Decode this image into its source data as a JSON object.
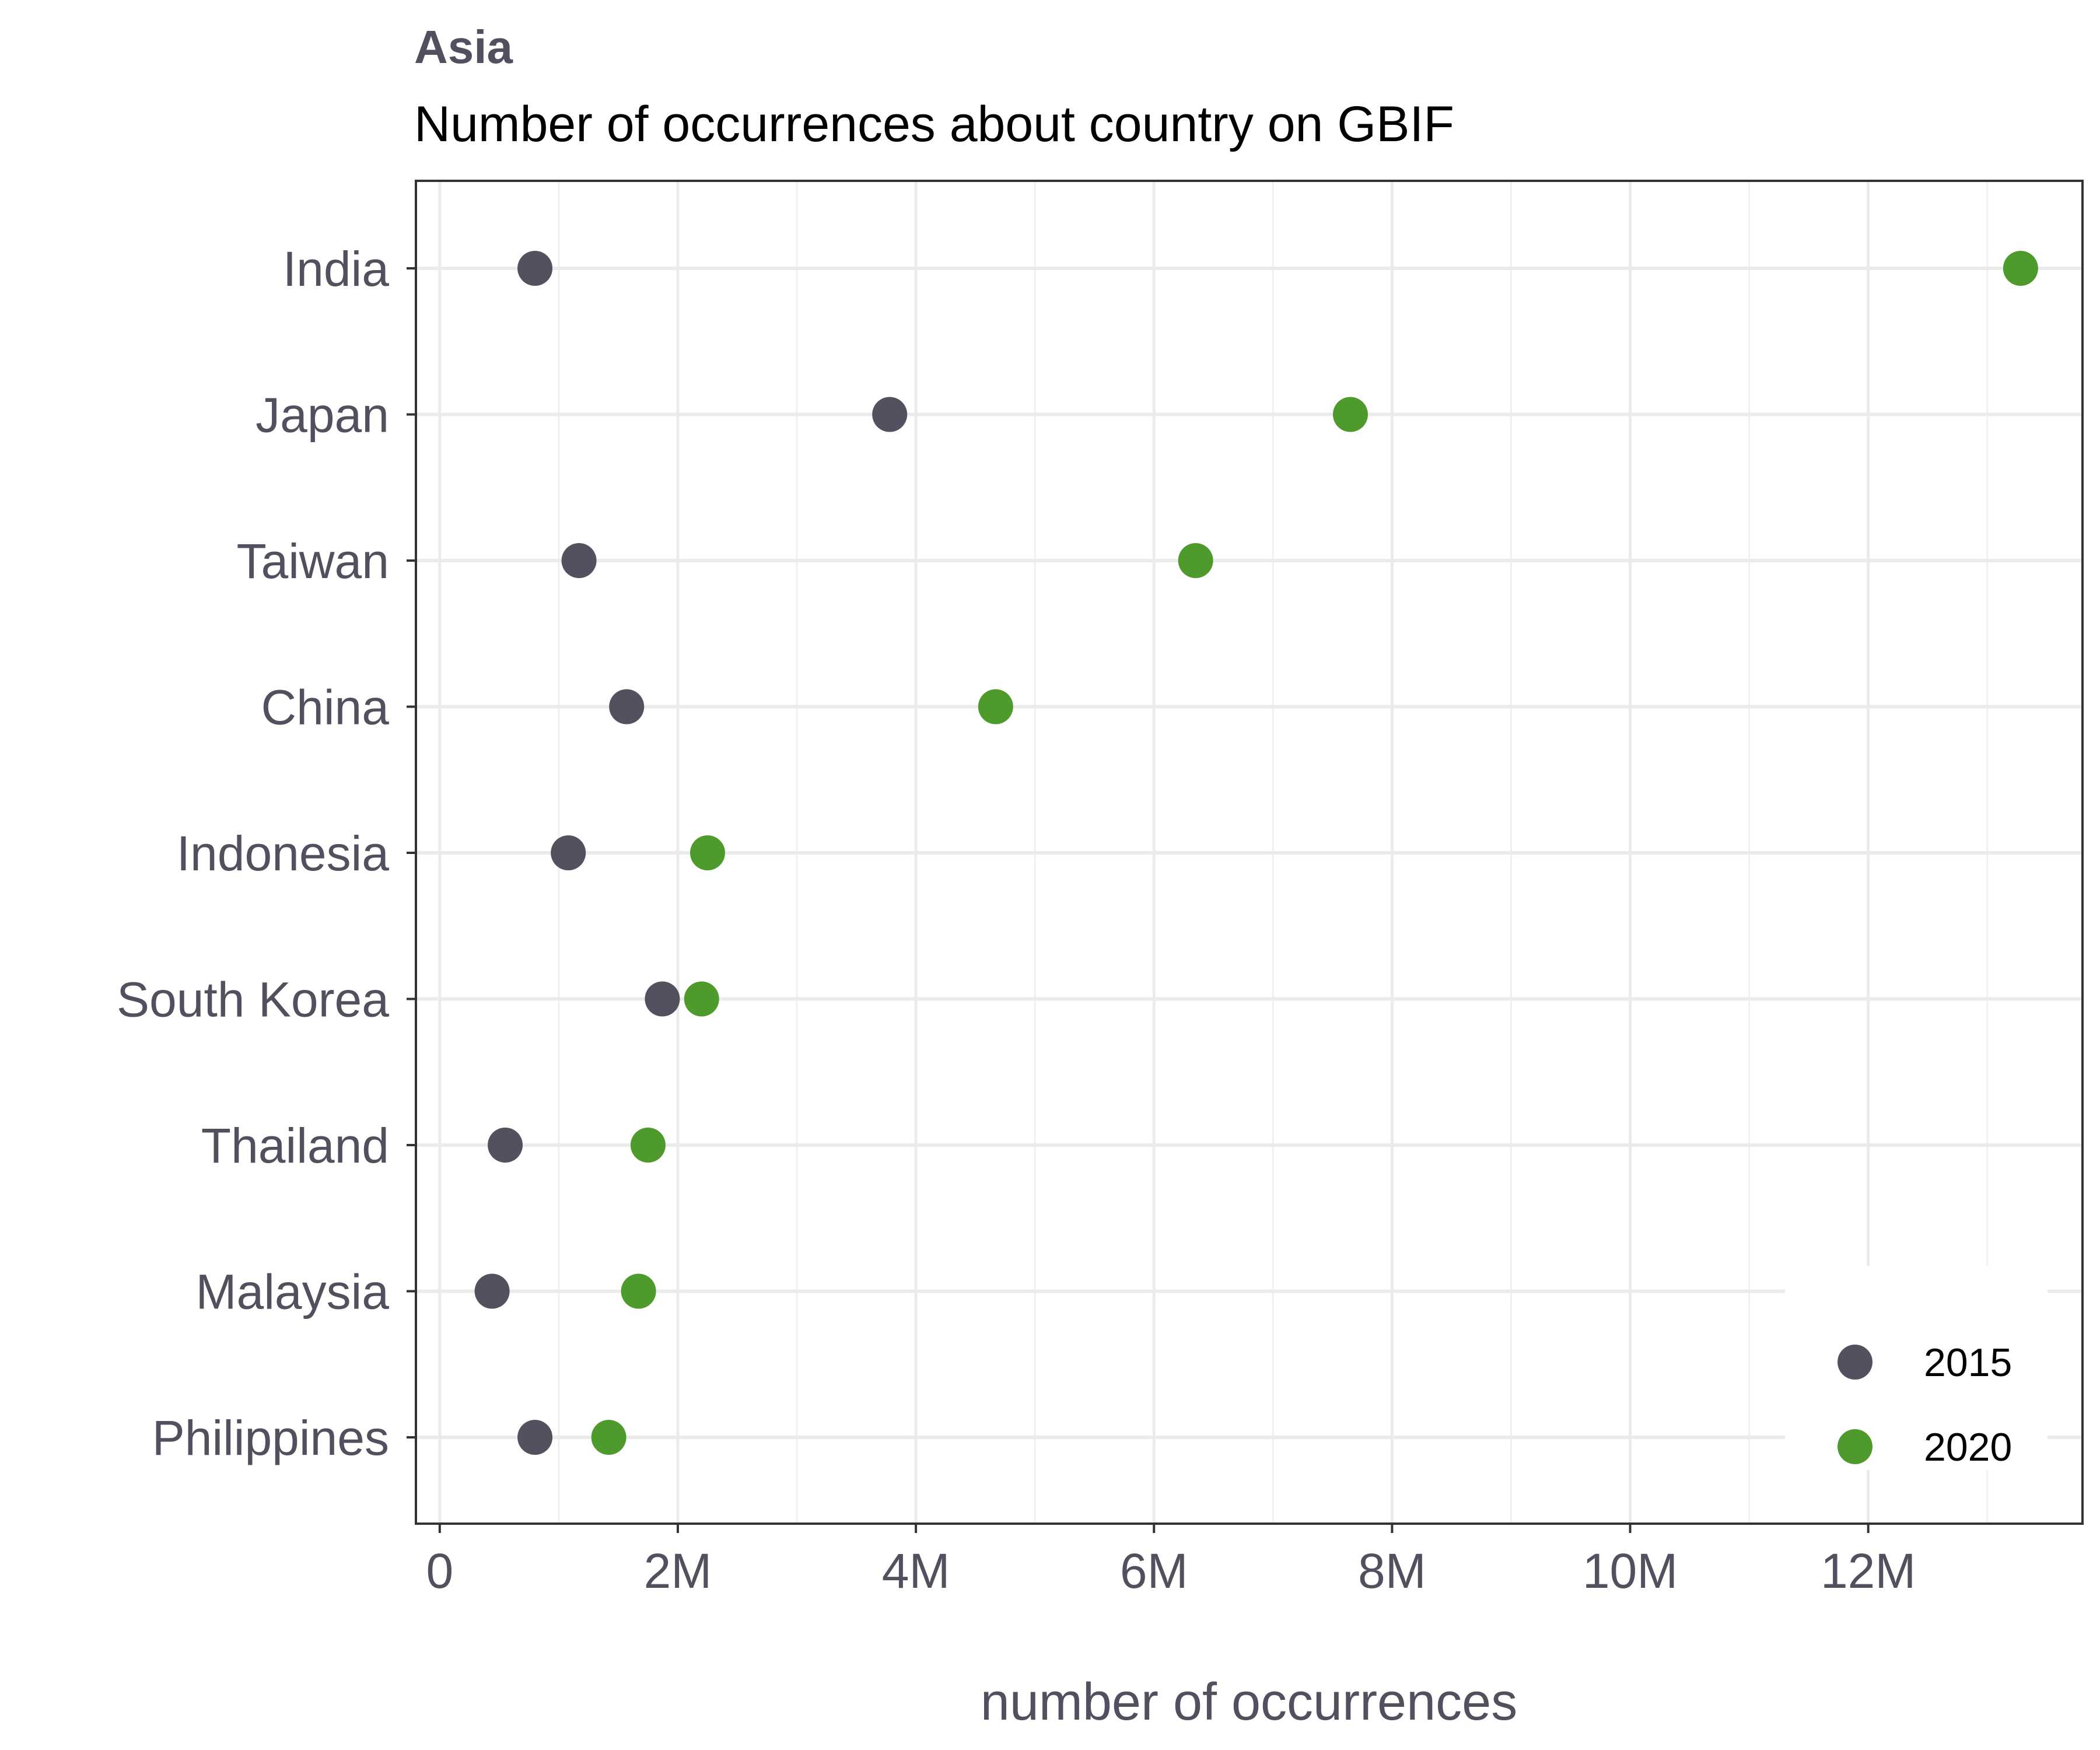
{
  "chart_data": {
    "type": "scatter",
    "title": "Asia",
    "subtitle": "Number of occurrences about country on GBIF",
    "xlabel": "number of occurrences",
    "ylabel": "",
    "xlim": [
      -0.2,
      13.8
    ],
    "x_ticks": [
      0,
      2,
      4,
      6,
      8,
      10,
      12
    ],
    "x_tick_labels": [
      "0",
      "2M",
      "4M",
      "6M",
      "8M",
      "10M",
      "12M"
    ],
    "categories": [
      "India",
      "Japan",
      "Taiwan",
      "China",
      "Indonesia",
      "South Korea",
      "Thailand",
      "Malaysia",
      "Philippines"
    ],
    "series": [
      {
        "name": "2015",
        "color": "#52515f",
        "values": [
          0.8,
          3.78,
          1.17,
          1.57,
          1.08,
          1.87,
          0.55,
          0.44,
          0.8
        ]
      },
      {
        "name": "2020",
        "color": "#4f9a2d",
        "values": [
          13.28,
          7.65,
          6.35,
          4.67,
          2.25,
          2.2,
          1.75,
          1.67,
          1.42
        ]
      }
    ],
    "grid": true,
    "legend_position": "bottom-right"
  }
}
